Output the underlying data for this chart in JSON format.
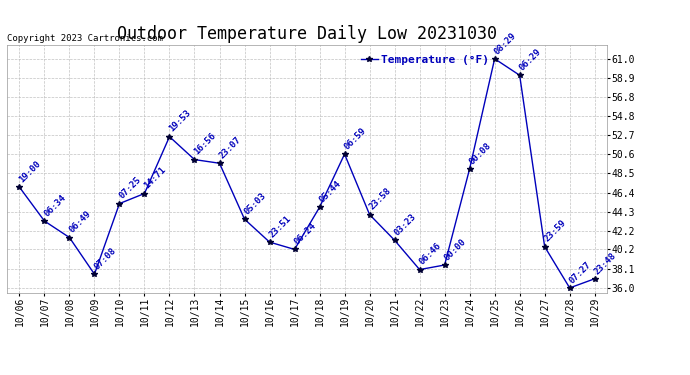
{
  "title": "Outdoor Temperature Daily Low 20231030",
  "copyright": "Copyright 2023 Cartronics.com",
  "legend_label": "Temperature (°F)",
  "x_labels": [
    "10/06",
    "10/07",
    "10/08",
    "10/09",
    "10/10",
    "10/11",
    "10/12",
    "10/13",
    "10/14",
    "10/15",
    "10/16",
    "10/17",
    "10/18",
    "10/19",
    "10/20",
    "10/21",
    "10/22",
    "10/23",
    "10/24",
    "10/25",
    "10/26",
    "10/27",
    "10/28",
    "10/29"
  ],
  "y_values": [
    47.0,
    43.3,
    41.5,
    37.5,
    45.2,
    46.3,
    52.5,
    50.0,
    49.6,
    43.5,
    41.0,
    40.2,
    44.8,
    50.6,
    44.0,
    41.2,
    38.0,
    38.5,
    49.0,
    61.0,
    59.2,
    40.5,
    36.0,
    37.0
  ],
  "point_labels": [
    "19:00",
    "06:34",
    "06:49",
    "07:08",
    "07:25",
    "14:71",
    "19:53",
    "16:56",
    "23:07",
    "05:03",
    "23:51",
    "06:24",
    "05:44",
    "06:59",
    "23:58",
    "03:23",
    "06:46",
    "00:00",
    "00:08",
    "08:29",
    "06:29",
    "23:59",
    "07:27",
    "23:48"
  ],
  "line_color": "#0000bb",
  "marker_color": "#000033",
  "bg_color": "#ffffff",
  "grid_color": "#bbbbbb",
  "title_color": "#000000",
  "annot_color": "#0000bb",
  "copyright_color": "#000000",
  "ylim_low": 35.5,
  "ylim_high": 62.5,
  "ytick_vals": [
    36.0,
    38.1,
    40.2,
    42.2,
    44.3,
    46.4,
    48.5,
    50.6,
    52.7,
    54.8,
    56.8,
    58.9,
    61.0
  ],
  "title_fontsize": 12,
  "annot_fontsize": 6.5,
  "tick_fontsize": 7,
  "legend_fontsize": 8,
  "copyright_fontsize": 6.5
}
